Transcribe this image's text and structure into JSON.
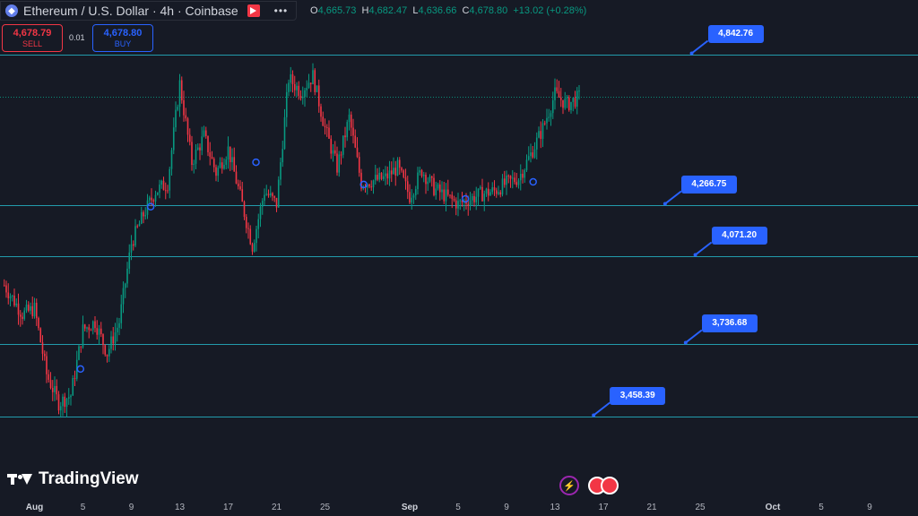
{
  "header": {
    "symbol_title": "Ethereum / U.S. Dollar · 4h · Coinbase",
    "ohlc": {
      "o": "4,665.73",
      "h": "4,682.47",
      "l": "4,636.66",
      "c": "4,678.80",
      "change": "+13.02 (+0.28%)"
    }
  },
  "trade": {
    "sell_price": "4,678.79",
    "sell_label": "SELL",
    "spread": "0.01",
    "buy_price": "4,678.80",
    "buy_label": "BUY"
  },
  "branding": {
    "logo_text": "TradingView"
  },
  "colors": {
    "background": "#161a25",
    "up": "#089981",
    "down": "#f23645",
    "level_line": "#26c6da",
    "label": "#2962ff"
  },
  "chart_data": {
    "type": "candlestick",
    "symbol": "ETHUSD",
    "timeframe": "4h",
    "y_range": [
      3150,
      5050
    ],
    "x_ticks": [
      "Aug",
      "5",
      "9",
      "13",
      "17",
      "21",
      "25",
      "Sep",
      "5",
      "9",
      "13",
      "17",
      "21",
      "25",
      "Oct",
      "5",
      "9"
    ],
    "x_tick_days": [
      1,
      5,
      9,
      13,
      17,
      21,
      25,
      32,
      36,
      40,
      44,
      48,
      52,
      56,
      62,
      66,
      70
    ],
    "horizontal_levels": [
      {
        "label": "4,842.76",
        "value": 4842.76,
        "label_day": 55.3
      },
      {
        "label": "4,266.75",
        "value": 4266.75,
        "label_day": 53.1
      },
      {
        "label": "4,071.20",
        "value": 4071.2,
        "label_day": 55.6
      },
      {
        "label": "3,736.68",
        "value": 3736.68,
        "label_day": 54.8
      },
      {
        "label": "3,458.39",
        "value": 3458.39,
        "label_day": 47.2
      }
    ],
    "last_price": 4678.8,
    "price_path": [
      [
        -1.5,
        3960
      ],
      [
        0,
        3850
      ],
      [
        1,
        3870
      ],
      [
        2,
        3620
      ],
      [
        3,
        3510
      ],
      [
        4,
        3540
      ],
      [
        5,
        3790
      ],
      [
        6,
        3820
      ],
      [
        7,
        3700
      ],
      [
        8,
        3820
      ],
      [
        9,
        4120
      ],
      [
        10,
        4230
      ],
      [
        11,
        4320
      ],
      [
        12,
        4350
      ],
      [
        13,
        4730
      ],
      [
        14,
        4430
      ],
      [
        15,
        4530
      ],
      [
        16,
        4390
      ],
      [
        17,
        4480
      ],
      [
        18,
        4300
      ],
      [
        19,
        4110
      ],
      [
        20,
        4320
      ],
      [
        21,
        4270
      ],
      [
        22,
        4750
      ],
      [
        23,
        4700
      ],
      [
        24,
        4760
      ],
      [
        25,
        4560
      ],
      [
        26,
        4410
      ],
      [
        27,
        4600
      ],
      [
        28,
        4350
      ],
      [
        29,
        4360
      ],
      [
        30,
        4370
      ],
      [
        31,
        4410
      ],
      [
        32,
        4300
      ],
      [
        33,
        4400
      ],
      [
        34,
        4330
      ],
      [
        35,
        4300
      ],
      [
        36,
        4270
      ],
      [
        37,
        4290
      ],
      [
        38,
        4310
      ],
      [
        39,
        4320
      ],
      [
        40,
        4350
      ],
      [
        41,
        4370
      ],
      [
        42,
        4460
      ],
      [
        43,
        4560
      ],
      [
        44,
        4690
      ],
      [
        45,
        4650
      ],
      [
        46,
        4679
      ]
    ],
    "event_markers": [
      {
        "day": 4.8,
        "price": 3640
      },
      {
        "day": 10.6,
        "price": 4260
      },
      {
        "day": 19.3,
        "price": 4430
      },
      {
        "day": 28.2,
        "price": 4345
      },
      {
        "day": 36.6,
        "price": 4290
      },
      {
        "day": 42.2,
        "price": 4355
      }
    ]
  }
}
